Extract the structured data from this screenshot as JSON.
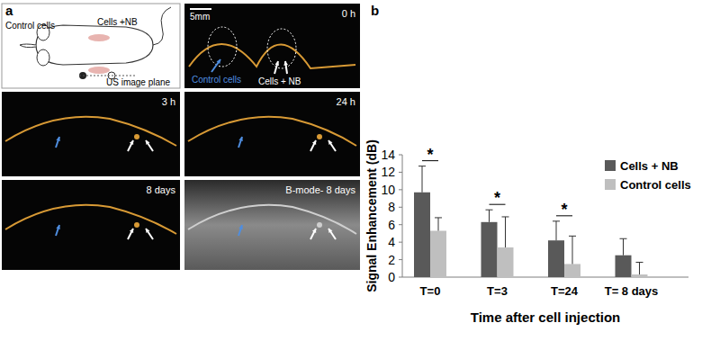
{
  "chart_data": {
    "type": "bar",
    "title": "b",
    "x_label": "Time after cell injection",
    "y_label": "Signal Enhancement (dB)",
    "categories": [
      "T=0",
      "T=3",
      "T=24",
      "T= 8 days"
    ],
    "series": [
      {
        "name": "Cells + NB",
        "color": "#595959",
        "values": [
          9.7,
          6.3,
          4.2,
          2.5
        ],
        "error": [
          3.0,
          1.4,
          2.2,
          1.9
        ]
      },
      {
        "name": "Control cells",
        "color": "#bfbfbf",
        "values": [
          5.3,
          3.4,
          1.5,
          0.3
        ],
        "error": [
          1.5,
          3.5,
          3.2,
          1.4
        ]
      }
    ],
    "ylim": [
      0,
      14
    ],
    "yticks": [
      0,
      2,
      4,
      6,
      8,
      10,
      12,
      14
    ],
    "legend": "upper right",
    "annotations": [
      {
        "text": "*",
        "x": "T=0"
      },
      {
        "text": "*",
        "x": "T=3"
      },
      {
        "text": "*",
        "x": "T=24"
      }
    ]
  },
  "panel_a": {
    "label": "a",
    "schematic": {
      "labels": [
        "Control cells",
        "Cells +NB",
        "US image plane"
      ]
    },
    "images": [
      {
        "time": "0 h",
        "scale_bar": "5mm",
        "labels": [
          "Control cells",
          "Cells + NB"
        ]
      },
      {
        "time": "3 h"
      },
      {
        "time": "24 h"
      },
      {
        "time": "8 days"
      },
      {
        "time": "B-mode- 8 days"
      }
    ]
  }
}
